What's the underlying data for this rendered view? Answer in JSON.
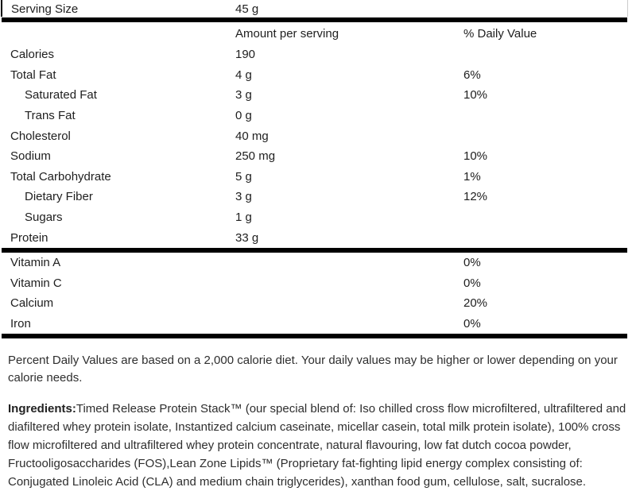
{
  "colors": {
    "divider": "#000000",
    "text": "#202020"
  },
  "serving": {
    "label": "Serving Size",
    "value": "45 g"
  },
  "header": {
    "amount": "Amount per serving",
    "daily_value": "% Daily Value"
  },
  "rows": [
    {
      "label": "Calories",
      "amount": "190",
      "dv": "",
      "indent": false
    },
    {
      "label": "Total Fat",
      "amount": "4 g",
      "dv": "6%",
      "indent": false
    },
    {
      "label": "Saturated Fat",
      "amount": "3 g",
      "dv": "10%",
      "indent": true
    },
    {
      "label": "Trans Fat",
      "amount": "0 g",
      "dv": "",
      "indent": true
    },
    {
      "label": "Cholesterol",
      "amount": "40 mg",
      "dv": "",
      "indent": false
    },
    {
      "label": "Sodium",
      "amount": "250 mg",
      "dv": "10%",
      "indent": false
    },
    {
      "label": "Total Carbohydrate",
      "amount": "5 g",
      "dv": "1%",
      "indent": false
    },
    {
      "label": "Dietary Fiber",
      "amount": "3 g",
      "dv": "12%",
      "indent": true
    },
    {
      "label": "Sugars",
      "amount": "1 g",
      "dv": "",
      "indent": true
    },
    {
      "label": "Protein",
      "amount": "33 g",
      "dv": "",
      "indent": false
    }
  ],
  "micronutrients": [
    {
      "label": "Vitamin A",
      "amount": "",
      "dv": "0%",
      "indent": false
    },
    {
      "label": "Vitamin C",
      "amount": "",
      "dv": "0%",
      "indent": false
    },
    {
      "label": "Calcium",
      "amount": "",
      "dv": "20%",
      "indent": false
    },
    {
      "label": "Iron",
      "amount": "",
      "dv": "0%",
      "indent": false
    }
  ],
  "footnote": "Percent Daily Values are based on a 2,000 calorie diet. Your daily values may be higher or lower depending on your calorie needs.",
  "ingredients": {
    "label": "Ingredients:",
    "text": "Timed Release Protein Stack™ (our special blend of: Iso chilled cross flow microfiltered, ultrafiltered and diafiltered whey protein isolate, Instantized calcium caseinate, micellar casein, total milk protein isolate), 100% cross flow microfiltered and ultrafiltered whey protein concentrate, natural flavouring, low fat dutch cocoa powder, Fructooligosaccharides (FOS),Lean Zone Lipids™ (Proprietary fat-fighting lipid energy complex consisting of: Conjugated Linoleic Acid (CLA) and medium chain triglycerides), xanthan food gum, cellulose, salt, sucralose."
  }
}
